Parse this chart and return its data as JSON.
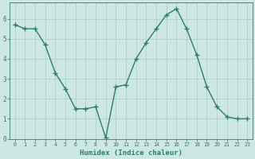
{
  "x": [
    0,
    1,
    2,
    3,
    4,
    5,
    6,
    7,
    8,
    9,
    10,
    11,
    12,
    13,
    14,
    15,
    16,
    17,
    18,
    19,
    20,
    21,
    22,
    23
  ],
  "y": [
    5.7,
    5.5,
    5.5,
    4.7,
    3.3,
    2.5,
    1.5,
    1.5,
    1.6,
    0.05,
    2.6,
    2.7,
    4.0,
    4.8,
    5.5,
    6.2,
    6.5,
    5.5,
    4.2,
    2.6,
    1.6,
    1.1,
    1.0,
    1.0
  ],
  "xlabel": "Humidex (Indice chaleur)",
  "line_color": "#2e7d6e",
  "marker": "+",
  "bg_color": "#cde8e4",
  "grid_color": "#aacec9",
  "tick_color": "#2e7d6e",
  "xlabel_color": "#2e7d6e",
  "ylim": [
    0,
    6.8
  ],
  "xlim": [
    -0.5,
    23.5
  ],
  "yticks": [
    0,
    1,
    2,
    3,
    4,
    5,
    6
  ],
  "xticks": [
    0,
    1,
    2,
    3,
    4,
    5,
    6,
    7,
    8,
    9,
    10,
    11,
    12,
    13,
    14,
    15,
    16,
    17,
    18,
    19,
    20,
    21,
    22,
    23
  ],
  "xtick_labels": [
    "0",
    "1",
    "2",
    "3",
    "4",
    "5",
    "6",
    "7",
    "8",
    "9",
    "10",
    "11",
    "12",
    "13",
    "14",
    "15",
    "16",
    "17",
    "18",
    "19",
    "20",
    "21",
    "22",
    "23"
  ],
  "line_width": 1.0,
  "marker_size": 4
}
